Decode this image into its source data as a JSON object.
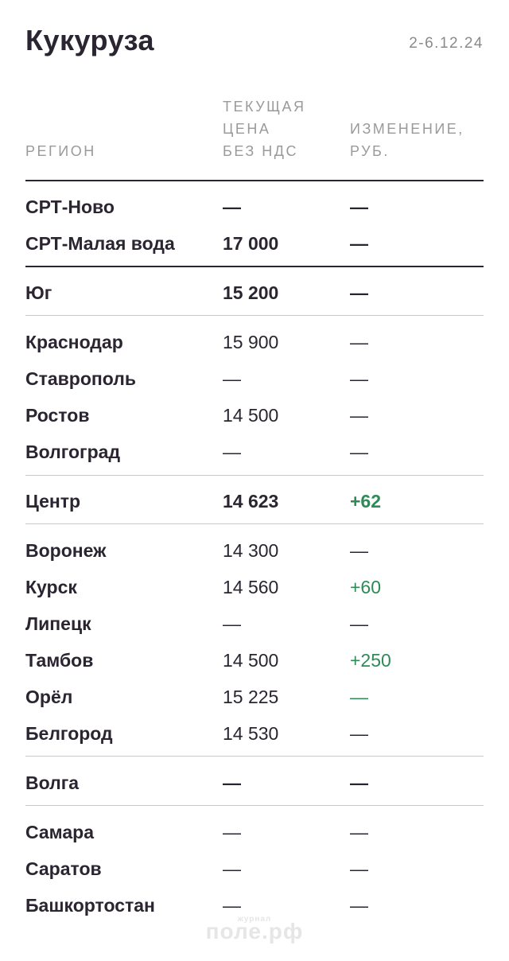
{
  "header": {
    "title": "Кукуруза",
    "date": "2-6.12.24"
  },
  "columns": {
    "region": "РЕГИОН",
    "price": [
      "ТЕКУЩАЯ",
      "ЦЕНА",
      "БЕЗ НДС"
    ],
    "change": [
      "ИЗМЕНЕНИЕ,",
      "РУБ."
    ]
  },
  "rows": [
    {
      "region": "СРТ-Ново",
      "price": "—",
      "change": "—"
    },
    {
      "region": "СРТ-Малая вода",
      "price": "17 000",
      "change": "—"
    },
    {
      "region": "Юг",
      "price": "15 200",
      "change": "—"
    },
    {
      "region": "Краснодар",
      "price": "15 900",
      "change": "—"
    },
    {
      "region": "Ставрополь",
      "price": "—",
      "change": "—"
    },
    {
      "region": "Ростов",
      "price": "14 500",
      "change": "—"
    },
    {
      "region": "Волгоград",
      "price": "—",
      "change": "—"
    },
    {
      "region": "Центр",
      "price": "14 623",
      "change": "+62"
    },
    {
      "region": "Воронеж",
      "price": "14 300",
      "change": "—"
    },
    {
      "region": "Курск",
      "price": "14 560",
      "change": "+60"
    },
    {
      "region": "Липецк",
      "price": "—",
      "change": "—"
    },
    {
      "region": "Тамбов",
      "price": "14 500",
      "change": "+250"
    },
    {
      "region": "Орёл",
      "price": "15 225",
      "change": "—"
    },
    {
      "region": "Белгород",
      "price": "14 530",
      "change": "—"
    },
    {
      "region": "Волга",
      "price": "—",
      "change": "—"
    },
    {
      "region": "Самара",
      "price": "—",
      "change": "—"
    },
    {
      "region": "Саратов",
      "price": "—",
      "change": "—"
    },
    {
      "region": "Башкортостан",
      "price": "—",
      "change": "—"
    }
  ],
  "colors": {
    "text": "#2a2530",
    "muted": "#9a9a9a",
    "positive": "#2e8a57",
    "rule": "#c8c8c8"
  },
  "watermark": {
    "small": "журнал",
    "text": "поле.рф"
  }
}
